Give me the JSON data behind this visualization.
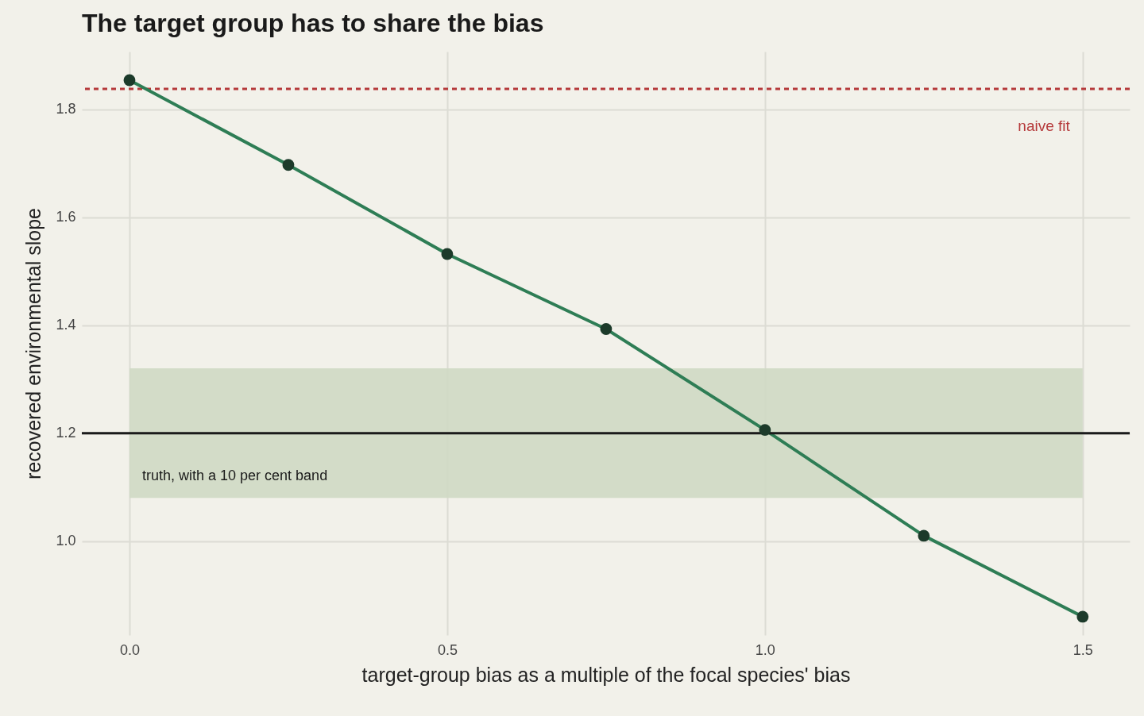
{
  "chart_data": {
    "type": "line",
    "title": "The target group has to share the bias",
    "xlabel": "target-group bias as a multiple of the focal species' bias",
    "ylabel": "recovered environmental slope",
    "x": [
      0,
      0.25,
      0.5,
      0.75,
      1.0,
      1.25,
      1.5
    ],
    "series": [
      {
        "color": "#2e7d55",
        "values": [
          1.854,
          1.697,
          1.532,
          1.393,
          1.206,
          1.01,
          0.86
        ]
      }
    ],
    "xlim": [
      -0.075,
      1.574
    ],
    "xticks": [
      {
        "value": 0,
        "label": "0.0"
      },
      0.5,
      {
        "value": 1,
        "label": "1.0"
      },
      1.5
    ],
    "ylim": [
      0.826,
      1.907
    ],
    "yticks": [
      {
        "value": 1,
        "label": "1.0"
      },
      1.2,
      1.4,
      1.6,
      1.8
    ],
    "ref_lines": [
      {
        "axis": "y",
        "value": 1.838,
        "label": "naive fit",
        "color": "#b5393a",
        "line_style": "dashed"
      },
      {
        "axis": "y",
        "value": 1.2,
        "color": "#1a1a1a",
        "line_style": "solid"
      }
    ],
    "bands": [
      {
        "axis": "y",
        "from": 1.08,
        "to": 1.32,
        "label": "truth, with a 10 per cent band",
        "color": "#cfd9c4"
      }
    ],
    "grid": true,
    "marker": "circle",
    "line_style": "solid"
  }
}
